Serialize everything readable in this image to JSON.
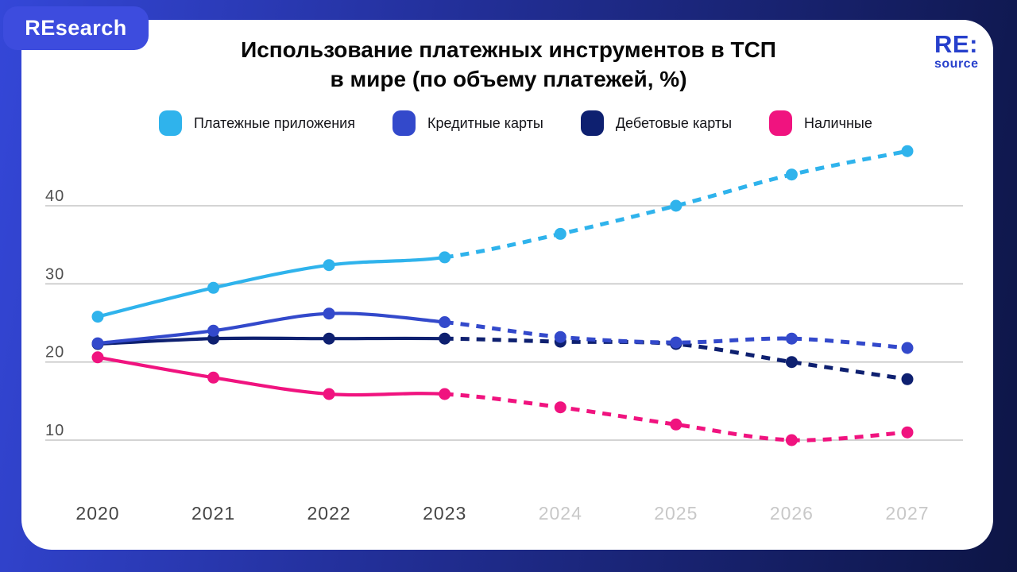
{
  "header": {
    "badge_label": "REsearch",
    "logo_line1": "RE:",
    "logo_line2": "source"
  },
  "title": {
    "line1": "Использование платежных инструментов в ТСП",
    "line2": "в мире (по объему платежей, %)"
  },
  "legend": [
    {
      "label": "Платежные приложения",
      "color": "#2FB3EC"
    },
    {
      "label": "Кредитные карты",
      "color": "#3349CB"
    },
    {
      "label": "Дебетовые карты",
      "color": "#0E2070"
    },
    {
      "label": "Наличные",
      "color": "#F0137F"
    }
  ],
  "chart_data": {
    "type": "line",
    "x": [
      2020,
      2021,
      2022,
      2023,
      2024,
      2025,
      2026,
      2027
    ],
    "forecast_from_index": 3,
    "series": [
      {
        "name": "Платежные приложения",
        "color": "#2FB3EC",
        "values": [
          25.8,
          29.5,
          32.4,
          33.4,
          36.4,
          40.0,
          44.0,
          47.0
        ]
      },
      {
        "name": "Кредитные карты",
        "color": "#3349CB",
        "values": [
          22.4,
          24.0,
          26.2,
          25.1,
          23.2,
          22.5,
          23.0,
          21.8
        ]
      },
      {
        "name": "Дебетовые карты",
        "color": "#0E2070",
        "values": [
          22.3,
          23.0,
          23.0,
          23.0,
          22.6,
          22.3,
          20.0,
          17.8
        ]
      },
      {
        "name": "Наличные",
        "color": "#F0137F",
        "values": [
          20.6,
          18.0,
          15.9,
          15.9,
          14.2,
          12.0,
          10.0,
          11.0
        ]
      }
    ],
    "yticks": [
      40,
      30,
      20,
      10
    ],
    "ylim": [
      5,
      50
    ],
    "grid": true,
    "grid_color": "#C6C6C6",
    "tick_label_color": "#4F4F4F",
    "x_label_color_historical": "#454545",
    "x_label_color_forecast": "#C8C8C8",
    "legend_position": "top",
    "style_note": "solid lines = historical (2020-2023), dashed lines = forecast (2024-2027)"
  }
}
